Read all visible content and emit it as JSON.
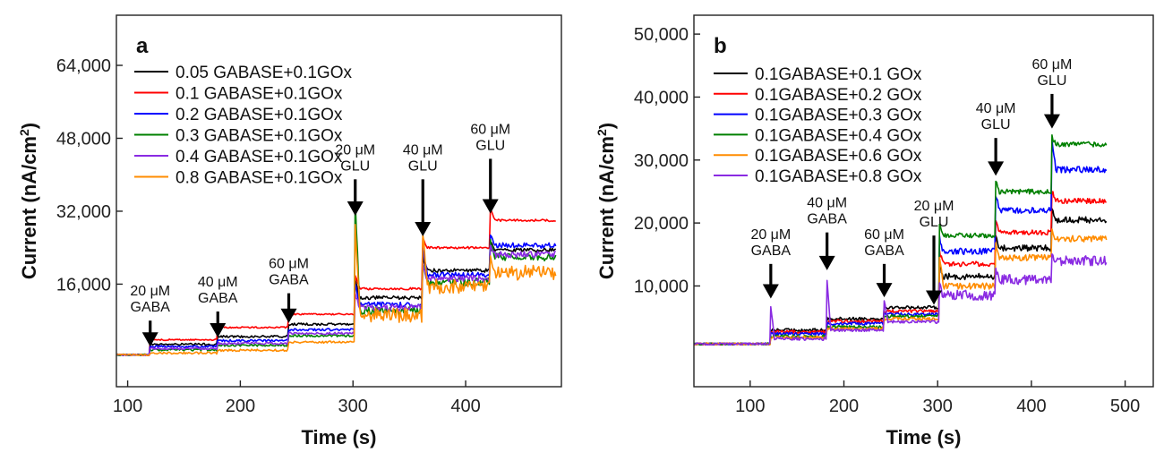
{
  "chart_data": [
    {
      "type": "line",
      "panel_label": "a",
      "xlabel": "Time (s)",
      "ylabel_prefix": "Current (nA/cm",
      "ylabel_sup": "2",
      "ylabel_suffix": ")",
      "xlim": [
        90,
        485
      ],
      "ylim": [
        -6500,
        75000
      ],
      "xticks": [
        100,
        200,
        300,
        400
      ],
      "xtick_labels": [
        "100",
        "200",
        "300",
        "400"
      ],
      "yticks": [
        16000,
        32000,
        48000,
        64000
      ],
      "ytick_labels": [
        "16,000",
        "32,000",
        "48,000",
        "64,000"
      ],
      "base": 500,
      "legend": [
        "0.05 GABASE+0.1GOx",
        "0.1 GABASE+0.1GOx",
        "0.2 GABASE+0.1GOx",
        "0.3 GABASE+0.1GOx",
        "0.4 GABASE+0.1GOx",
        "0.8 GABASE+0.1GOx"
      ],
      "series": [
        {
          "name": "0.05 GABASE+0.1GOx",
          "color": "#000000",
          "step_times": [
            120,
            180,
            243,
            302,
            362,
            422
          ],
          "levels": [
            2800,
            4500,
            7200,
            13000,
            19000,
            23500
          ],
          "spikes": [
            0,
            0,
            0,
            4000,
            3000,
            2000
          ],
          "noise": 400
        },
        {
          "name": "0.1 GABASE+0.1GOx",
          "color": "#ff0000",
          "step_times": [
            120,
            180,
            243,
            302,
            362,
            422
          ],
          "levels": [
            3800,
            6500,
            9400,
            15000,
            24000,
            30000
          ],
          "spikes": [
            0,
            0,
            0,
            3000,
            2000,
            2500
          ],
          "noise": 250
        },
        {
          "name": "0.2 GABASE+0.1GOx",
          "color": "#0000ff",
          "step_times": [
            120,
            180,
            243,
            302,
            362,
            422
          ],
          "levels": [
            2300,
            3600,
            6000,
            11500,
            18000,
            24500
          ],
          "spikes": [
            0,
            0,
            0,
            5000,
            6000,
            2000
          ],
          "noise": 600
        },
        {
          "name": "0.3 GABASE+0.1GOx",
          "color": "#008000",
          "step_times": [
            120,
            180,
            243,
            302,
            362,
            422
          ],
          "levels": [
            1600,
            2600,
            4700,
            10200,
            16500,
            22000
          ],
          "spikes": [
            0,
            0,
            0,
            24000,
            4000,
            3000
          ],
          "noise": 900
        },
        {
          "name": "0.4 GABASE+0.1GOx",
          "color": "#8a2be2",
          "step_times": [
            120,
            180,
            243,
            302,
            362,
            422
          ],
          "levels": [
            1900,
            3000,
            5200,
            10800,
            17200,
            22500
          ],
          "spikes": [
            0,
            0,
            0,
            3000,
            3000,
            2500
          ],
          "noise": 700
        },
        {
          "name": "0.8 GABASE+0.1GOx",
          "color": "#ff8c00",
          "step_times": [
            120,
            180,
            243,
            302,
            362,
            422
          ],
          "levels": [
            900,
            1500,
            3300,
            9200,
            15500,
            18500
          ],
          "spikes": [
            0,
            0,
            0,
            20000,
            11000,
            4000
          ],
          "noise": 1600
        }
      ],
      "annotations": [
        {
          "line1": "20 μM",
          "line2": "GABA",
          "x": 120,
          "y_tip": 2300,
          "y_tail": 8000
        },
        {
          "line1": "40 μM",
          "line2": "GABA",
          "x": 180,
          "y_tip": 4300,
          "y_tail": 10000
        },
        {
          "line1": "60 μM",
          "line2": "GABA",
          "x": 243,
          "y_tip": 7500,
          "y_tail": 14000
        },
        {
          "line1": "20 μM",
          "line2": "GLU",
          "x": 302,
          "y_tip": 31000,
          "y_tail": 39000
        },
        {
          "line1": "40 μM",
          "line2": "GLU",
          "x": 362,
          "y_tip": 26500,
          "y_tail": 39000
        },
        {
          "line1": "60 μM",
          "line2": "GLU",
          "x": 422,
          "y_tip": 31500,
          "y_tail": 43500
        }
      ]
    },
    {
      "type": "line",
      "panel_label": "b",
      "xlabel": "Time (s)",
      "ylabel_prefix": "Current (nA/cm",
      "ylabel_sup": "2",
      "ylabel_suffix": ")",
      "xlim": [
        40,
        530
      ],
      "ylim": [
        -6000,
        53000
      ],
      "xticks": [
        100,
        200,
        300,
        400,
        500
      ],
      "xtick_labels": [
        "100",
        "200",
        "300",
        "400",
        "500"
      ],
      "yticks": [
        10000,
        20000,
        30000,
        40000,
        50000
      ],
      "ytick_labels": [
        "10,000",
        "20,000",
        "30,000",
        "40,000",
        "50,000"
      ],
      "base": 800,
      "legend": [
        "0.1GABASE+0.1 GOx",
        "0.1GABASE+0.2 GOx",
        "0.1GABASE+0.3 GOx",
        "0.1GABASE+0.4 GOx",
        "0.1GABASE+0.6 GOx",
        "0.1GABASE+0.8 GOx"
      ],
      "series": [
        {
          "name": "0.1GABASE+0.1 GOx",
          "color": "#000000",
          "step_times": [
            122,
            182,
            243,
            302,
            362,
            422
          ],
          "levels": [
            3000,
            4800,
            6600,
            11500,
            16000,
            20500
          ],
          "spikes": [
            0,
            0,
            0,
            2000,
            2000,
            1500
          ],
          "noise": 500
        },
        {
          "name": "0.1GABASE+0.2 GOx",
          "color": "#ff0000",
          "step_times": [
            122,
            182,
            243,
            302,
            362,
            422
          ],
          "levels": [
            2700,
            4400,
            6000,
            13500,
            18500,
            23500
          ],
          "spikes": [
            0,
            0,
            0,
            2000,
            2000,
            1500
          ],
          "noise": 400
        },
        {
          "name": "0.1GABASE+0.3 GOx",
          "color": "#0000ff",
          "step_times": [
            122,
            182,
            243,
            302,
            362,
            422
          ],
          "levels": [
            2400,
            4000,
            5500,
            15500,
            22000,
            28500
          ],
          "spikes": [
            0,
            0,
            0,
            2000,
            2500,
            5000
          ],
          "noise": 500
        },
        {
          "name": "0.1GABASE+0.4 GOx",
          "color": "#008000",
          "step_times": [
            122,
            182,
            243,
            302,
            362,
            422
          ],
          "levels": [
            2000,
            3500,
            5200,
            18000,
            25000,
            32500
          ],
          "spikes": [
            0,
            0,
            0,
            2000,
            2000,
            1200
          ],
          "noise": 400
        },
        {
          "name": "0.1GABASE+0.6 GOx",
          "color": "#ff8c00",
          "step_times": [
            122,
            182,
            243,
            302,
            362,
            422
          ],
          "levels": [
            1800,
            3200,
            4800,
            10000,
            14500,
            17500
          ],
          "spikes": [
            0,
            0,
            0,
            4500,
            2000,
            1500
          ],
          "noise": 500
        },
        {
          "name": "0.1GABASE+0.8 GOx",
          "color": "#8a2be2",
          "step_times": [
            122,
            182,
            243,
            302,
            362,
            422
          ],
          "levels": [
            1600,
            3000,
            4300,
            8500,
            11000,
            14000
          ],
          "spikes": [
            5000,
            8000,
            3500,
            1500,
            1500,
            1500
          ],
          "noise": 800
        }
      ],
      "annotations": [
        {
          "line1": "20 μM",
          "line2": "GABA",
          "x": 122,
          "y_tip": 8000,
          "y_tail": 13500
        },
        {
          "line1": "40 μM",
          "line2": "GABA",
          "x": 182,
          "y_tip": 12500,
          "y_tail": 18500
        },
        {
          "line1": "60 μM",
          "line2": "GABA",
          "x": 243,
          "y_tip": 8200,
          "y_tail": 13500
        },
        {
          "line1": "20 μM",
          "line2": "GLU",
          "x": 296,
          "y_tip": 7000,
          "y_tail": 18000
        },
        {
          "line1": "40 μM",
          "line2": "GLU",
          "x": 362,
          "y_tip": 27500,
          "y_tail": 33500
        },
        {
          "line1": "60 μM",
          "line2": "GLU",
          "x": 422,
          "y_tip": 35000,
          "y_tail": 40500
        }
      ]
    }
  ]
}
